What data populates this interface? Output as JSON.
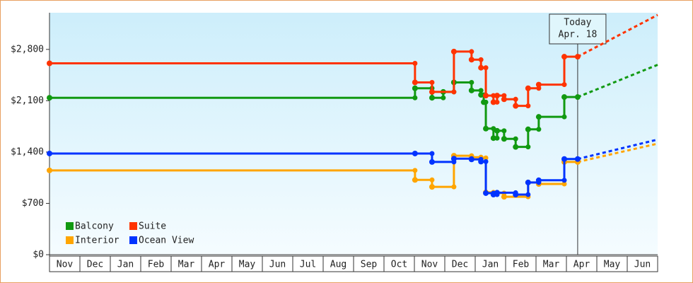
{
  "chart_data": {
    "type": "step-line",
    "categories": [
      "Nov",
      "Dec",
      "Jan",
      "Feb",
      "Mar",
      "Apr",
      "May",
      "Jun",
      "Jul",
      "Aug",
      "Sep",
      "Oct",
      "Nov",
      "Dec",
      "Jan",
      "Feb",
      "Mar",
      "Apr",
      "May",
      "Jun"
    ],
    "xlim": [
      0,
      20
    ],
    "ylim": [
      0,
      3300
    ],
    "yticks": [
      {
        "value": 0,
        "label": "$0"
      },
      {
        "value": 700,
        "label": "$700"
      },
      {
        "value": 1400,
        "label": "$1,400"
      },
      {
        "value": 2100,
        "label": "$2,100"
      },
      {
        "value": 2800,
        "label": "$2,800"
      }
    ],
    "today": {
      "x": 17.37,
      "label": [
        "Today",
        "Apr. 18"
      ]
    },
    "legend": "lower-left",
    "series": [
      {
        "name": "Balcony",
        "color": "#119911",
        "x": [
          0,
          12.02,
          12.58,
          12.95,
          13.3,
          13.88,
          14.19,
          14.28,
          14.35,
          14.6,
          14.72,
          14.95,
          15.33,
          15.74,
          16.09,
          16.93,
          17.37
        ],
        "values": [
          2140,
          2270,
          2140,
          2220,
          2350,
          2240,
          2180,
          2080,
          1720,
          1590,
          1690,
          1580,
          1470,
          1710,
          1880,
          2150,
          2150
        ],
        "projection": 2590
      },
      {
        "name": "Suite",
        "color": "#ff3300",
        "x": [
          0,
          12.02,
          12.58,
          13.3,
          13.88,
          14.19,
          14.35,
          14.6,
          14.72,
          14.95,
          15.33,
          15.74,
          16.09,
          16.93,
          17.37
        ],
        "values": [
          2610,
          2350,
          2220,
          2770,
          2660,
          2550,
          2170,
          2080,
          2170,
          2120,
          2030,
          2270,
          2320,
          2700,
          2700
        ],
        "projection": 3270
      },
      {
        "name": "Interior",
        "color": "#ffa500",
        "x": [
          0,
          12.02,
          12.58,
          13.3,
          13.88,
          14.19,
          14.35,
          14.6,
          14.95,
          15.74,
          16.09,
          16.93,
          17.37
        ],
        "values": [
          1150,
          1020,
          925,
          1350,
          1330,
          1320,
          850,
          840,
          790,
          985,
          965,
          1265,
          1265
        ],
        "projection": 1515
      },
      {
        "name": "Ocean View",
        "color": "#0033ff",
        "x": [
          0,
          12.02,
          12.58,
          13.3,
          13.88,
          14.19,
          14.35,
          14.6,
          14.72,
          15.33,
          15.74,
          16.09,
          16.93,
          17.37
        ],
        "values": [
          1380,
          1380,
          1265,
          1310,
          1300,
          1270,
          840,
          820,
          845,
          820,
          985,
          1015,
          1305,
          1305
        ],
        "projection": 1570
      }
    ]
  }
}
